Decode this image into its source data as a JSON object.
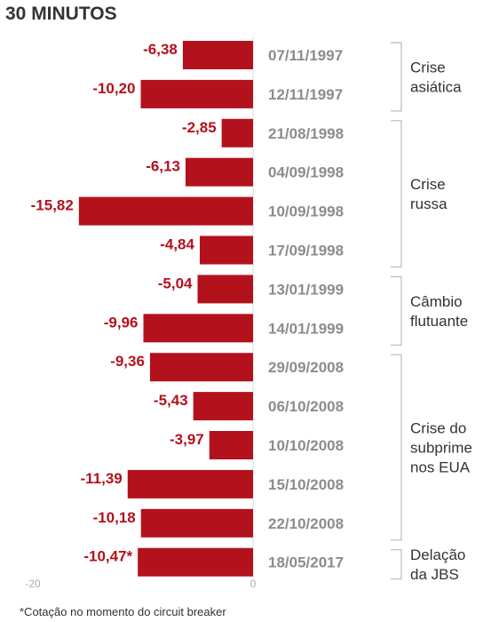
{
  "chart_data": {
    "type": "bar",
    "orientation": "horizontal",
    "title": "30 MINUTOS",
    "categories": [
      "07/11/1997",
      "12/11/1997",
      "21/08/1998",
      "04/09/1998",
      "10/09/1998",
      "17/09/1998",
      "13/01/1999",
      "14/01/1999",
      "29/09/2008",
      "06/10/2008",
      "10/10/2008",
      "15/10/2008",
      "22/10/2008",
      "18/05/2017"
    ],
    "values": [
      -6.38,
      -10.2,
      -2.85,
      -6.13,
      -15.82,
      -4.84,
      -5.04,
      -9.96,
      -9.36,
      -5.43,
      -3.97,
      -11.39,
      -10.18,
      -10.47
    ],
    "value_labels": [
      "-6,38",
      "-10,20",
      "-2,85",
      "-6,13",
      "-15,82",
      "-4,84",
      "-5,04",
      "-9,96",
      "-9,36",
      "-5,43",
      "-3,97",
      "-11,39",
      "-10,18",
      "-10,47*"
    ],
    "groups": [
      {
        "lines": [
          "Crise",
          "asiática"
        ],
        "start": 0,
        "end": 1
      },
      {
        "lines": [
          "Crise",
          "russa"
        ],
        "start": 2,
        "end": 5
      },
      {
        "lines": [
          "Câmbio",
          "flutuante"
        ],
        "start": 6,
        "end": 7
      },
      {
        "lines": [
          "Crise do",
          "subprime",
          "nos EUA"
        ],
        "start": 8,
        "end": 12
      },
      {
        "lines": [
          "Delação",
          "da JBS"
        ],
        "start": 13,
        "end": 13
      }
    ],
    "xlim": [
      -20,
      0
    ],
    "tick_labels": [
      "-20",
      "0"
    ],
    "bar_color": "#b3121d",
    "footnote": "*Cotação no momento do circuit breaker"
  }
}
